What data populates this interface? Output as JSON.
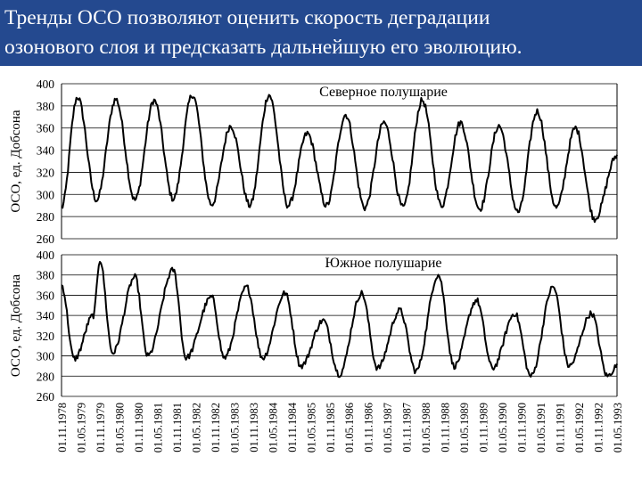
{
  "slide": {
    "title_line1": "Тренды ОСО позволяют оценить скорость деградации",
    "title_line2": "озонового слоя и предсказать дальнейшую его эволюцию."
  },
  "colors": {
    "title_bg": "#24498f",
    "title_text": "#ffffff",
    "series": "#000000",
    "grid": "#000000"
  },
  "chart_data": [
    {
      "type": "line",
      "title": "Северное полушарие",
      "ylabel": "ОСО, ед. Добсона",
      "ylim": [
        260,
        400
      ],
      "yticks": [
        260,
        280,
        300,
        320,
        340,
        360,
        380,
        400
      ],
      "grid": true,
      "x_start": "1978-11-01",
      "x_end": "1993-05-01",
      "series": [
        {
          "points": [
            [
              "1978-11-01",
              288
            ],
            [
              "1979-04-01",
              388
            ],
            [
              "1979-10-01",
              295
            ],
            [
              "1980-04-01",
              386
            ],
            [
              "1980-10-01",
              295
            ],
            [
              "1981-04-01",
              385
            ],
            [
              "1981-10-01",
              296
            ],
            [
              "1982-04-01",
              390
            ],
            [
              "1982-10-01",
              291
            ],
            [
              "1983-04-01",
              362
            ],
            [
              "1983-10-01",
              290
            ],
            [
              "1984-04-01",
              390
            ],
            [
              "1984-10-01",
              290
            ],
            [
              "1985-04-01",
              355
            ],
            [
              "1985-10-01",
              290
            ],
            [
              "1986-04-01",
              372
            ],
            [
              "1986-10-01",
              288
            ],
            [
              "1987-04-01",
              365
            ],
            [
              "1987-10-01",
              288
            ],
            [
              "1988-04-01",
              385
            ],
            [
              "1988-10-01",
              290
            ],
            [
              "1989-04-01",
              365
            ],
            [
              "1989-10-01",
              287
            ],
            [
              "1990-04-01",
              362
            ],
            [
              "1990-10-01",
              284
            ],
            [
              "1991-04-01",
              375
            ],
            [
              "1991-10-01",
              288
            ],
            [
              "1992-04-01",
              360
            ],
            [
              "1992-10-01",
              278
            ],
            [
              "1993-05-01",
              335
            ]
          ]
        }
      ]
    },
    {
      "type": "line",
      "title": "Южное полушарие",
      "ylabel": "ОСО, ед. Добсона",
      "ylim": [
        260,
        400
      ],
      "yticks": [
        260,
        280,
        300,
        320,
        340,
        360,
        380,
        400
      ],
      "grid": true,
      "x_ticks": [
        "01.11.1978",
        "01.05.1979",
        "01.11.1979",
        "01.05.1980",
        "01.11.1980",
        "01.05.1981",
        "01.11.1981",
        "01.05.1982",
        "01.11.1982",
        "01.05.1983",
        "01.11.1983",
        "01.05.1984",
        "01.11.1984",
        "01.05.1985",
        "01.11.1985",
        "01.05.1986",
        "01.11.1986",
        "01.05.1987",
        "01.11.1987",
        "01.05.1988",
        "01.11.1988",
        "01.05.1989",
        "01.11.1989",
        "01.05.1990",
        "01.11.1990",
        "01.05.1991",
        "01.11.1991",
        "01.05.1992",
        "01.11.1992",
        "01.05.1993"
      ],
      "series": [
        {
          "points": [
            [
              "1978-11-01",
              370
            ],
            [
              "1979-03-01",
              297
            ],
            [
              "1979-09-01",
              340
            ],
            [
              "1979-11-01",
              395
            ],
            [
              "1980-03-01",
              303
            ],
            [
              "1980-10-01",
              378
            ],
            [
              "1981-02-01",
              300
            ],
            [
              "1981-10-01",
              385
            ],
            [
              "1982-02-01",
              298
            ],
            [
              "1982-10-01",
              358
            ],
            [
              "1983-02-01",
              298
            ],
            [
              "1983-09-01",
              368
            ],
            [
              "1984-02-01",
              298
            ],
            [
              "1984-09-01",
              362
            ],
            [
              "1985-02-01",
              290
            ],
            [
              "1985-09-01",
              335
            ],
            [
              "1986-02-01",
              282
            ],
            [
              "1986-09-01",
              362
            ],
            [
              "1987-02-01",
              288
            ],
            [
              "1987-09-01",
              345
            ],
            [
              "1988-02-01",
              285
            ],
            [
              "1988-09-01",
              380
            ],
            [
              "1989-02-01",
              290
            ],
            [
              "1989-09-01",
              355
            ],
            [
              "1990-02-01",
              288
            ],
            [
              "1990-09-01",
              342
            ],
            [
              "1991-02-01",
              280
            ],
            [
              "1991-09-01",
              368
            ],
            [
              "1992-02-01",
              290
            ],
            [
              "1992-09-01",
              342
            ],
            [
              "1993-02-01",
              280
            ],
            [
              "1993-05-01",
              290
            ]
          ]
        }
      ]
    }
  ]
}
